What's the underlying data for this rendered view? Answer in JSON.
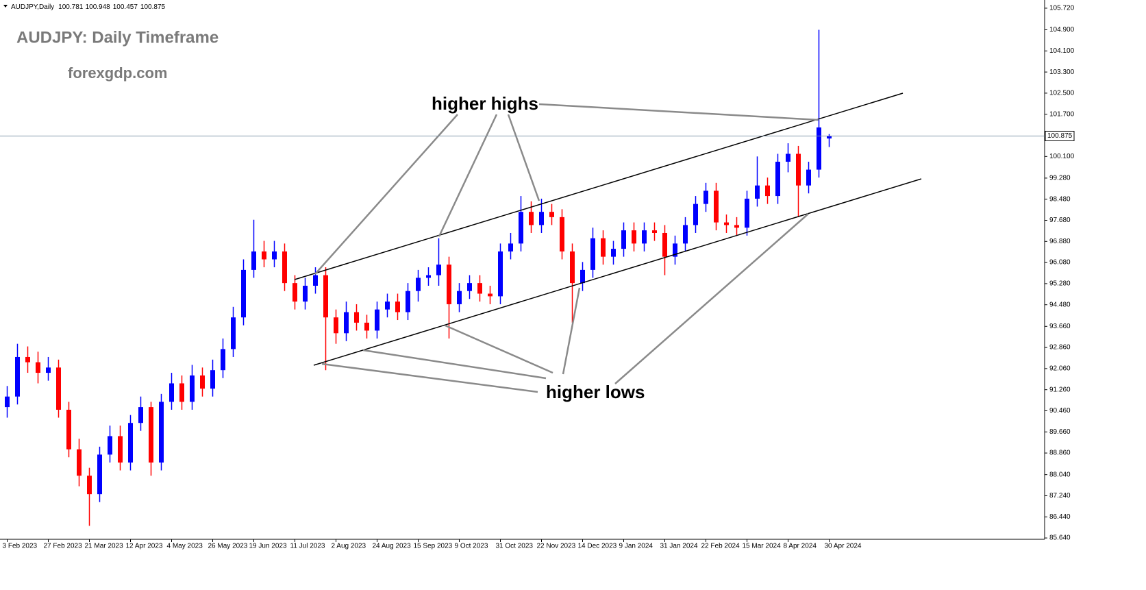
{
  "chart_data": {
    "type": "candlestick",
    "symbol": "AUDJPY,Daily",
    "title": "AUDJPY: Daily Timeframe",
    "subtitle": "forexgdp.com",
    "annotations": [
      "higher highs",
      "higher lows"
    ],
    "up_color": "#0000ff",
    "down_color": "#ff0000",
    "ylim": [
      85.59,
      106.03
    ],
    "yticks": [
      {
        "value": 105.72,
        "label": "105.720"
      },
      {
        "value": 104.9,
        "label": "104.900"
      },
      {
        "value": 104.1,
        "label": "104.100"
      },
      {
        "value": 103.3,
        "label": "103.300"
      },
      {
        "value": 102.5,
        "label": "102.500"
      },
      {
        "value": 101.7,
        "label": "101.700"
      },
      {
        "value": 100.1,
        "label": "100.100"
      },
      {
        "value": 99.28,
        "label": "99.280"
      },
      {
        "value": 98.48,
        "label": "98.480"
      },
      {
        "value": 97.68,
        "label": "97.680"
      },
      {
        "value": 96.88,
        "label": "96.880"
      },
      {
        "value": 96.08,
        "label": "96.080"
      },
      {
        "value": 95.28,
        "label": "95.280"
      },
      {
        "value": 94.48,
        "label": "94.480"
      },
      {
        "value": 93.66,
        "label": "93.660"
      },
      {
        "value": 92.86,
        "label": "92.860"
      },
      {
        "value": 92.06,
        "label": "92.060"
      },
      {
        "value": 91.26,
        "label": "91.260"
      },
      {
        "value": 90.46,
        "label": "90.460"
      },
      {
        "value": 89.66,
        "label": "89.660"
      },
      {
        "value": 88.86,
        "label": "88.860"
      },
      {
        "value": 88.04,
        "label": "88.040"
      },
      {
        "value": 87.24,
        "label": "87.240"
      },
      {
        "value": 86.44,
        "label": "86.440"
      },
      {
        "value": 85.64,
        "label": "85.640"
      }
    ],
    "categories": [
      "3 Feb 2023",
      null,
      null,
      null,
      "27 Feb 2023",
      null,
      null,
      null,
      "21 Mar 2023",
      null,
      null,
      null,
      "12 Apr 2023",
      null,
      null,
      null,
      "4 May 2023",
      null,
      null,
      null,
      "26 May 2023",
      null,
      null,
      null,
      "19 Jun 2023",
      null,
      null,
      null,
      "11 Jul 2023",
      null,
      null,
      null,
      "2 Aug 2023",
      null,
      null,
      null,
      "24 Aug 2023",
      null,
      null,
      null,
      "15 Sep 2023",
      null,
      null,
      null,
      "9 Oct 2023",
      null,
      null,
      null,
      "31 Oct 2023",
      null,
      null,
      null,
      "22 Nov 2023",
      null,
      null,
      null,
      "14 Dec 2023",
      null,
      null,
      null,
      "9 Jan 2024",
      null,
      null,
      null,
      "31 Jan 2024",
      null,
      null,
      null,
      "22 Feb 2024",
      null,
      null,
      null,
      "15 Mar 2024",
      null,
      null,
      null,
      "8 Apr 2024",
      null,
      null,
      null,
      "30 Apr 2024"
    ],
    "open": [
      90.6,
      91.0,
      92.5,
      92.3,
      91.9,
      92.1,
      90.5,
      89.0,
      88.0,
      87.3,
      88.8,
      89.5,
      88.5,
      90.0,
      90.6,
      88.5,
      90.8,
      91.5,
      90.8,
      91.8,
      91.3,
      92.0,
      92.8,
      94.0,
      95.8,
      96.5,
      96.2,
      96.5,
      95.3,
      94.6,
      95.2,
      95.6,
      94.0,
      93.4,
      94.2,
      93.8,
      93.5,
      94.3,
      94.6,
      94.2,
      95.0,
      95.5,
      95.6,
      96.0,
      94.5,
      95.0,
      95.3,
      94.9,
      94.8,
      96.5,
      96.8,
      98.0,
      97.5,
      98.0,
      97.8,
      96.5,
      95.3,
      95.8,
      97.0,
      96.3,
      96.6,
      97.3,
      96.8,
      97.3,
      97.2,
      96.3,
      96.8,
      97.5,
      98.3,
      98.8,
      97.6,
      97.5,
      97.4,
      98.5,
      99.0,
      98.6,
      99.9,
      100.2,
      99.0,
      99.6,
      100.781
    ],
    "high": [
      91.4,
      93.0,
      92.9,
      92.7,
      92.5,
      92.4,
      90.8,
      89.4,
      88.3,
      89.1,
      89.9,
      89.9,
      90.3,
      91.0,
      90.8,
      91.1,
      91.9,
      91.8,
      92.2,
      92.1,
      92.4,
      93.2,
      94.4,
      96.2,
      97.7,
      96.9,
      96.9,
      96.8,
      95.6,
      95.5,
      95.9,
      95.9,
      94.3,
      94.6,
      94.5,
      94.1,
      94.6,
      94.9,
      94.9,
      95.3,
      95.8,
      95.9,
      97.0,
      96.3,
      95.3,
      95.6,
      95.6,
      95.2,
      96.8,
      97.2,
      98.6,
      98.4,
      98.5,
      98.3,
      98.1,
      96.8,
      96.1,
      97.4,
      97.3,
      96.9,
      97.6,
      97.6,
      97.6,
      97.6,
      97.5,
      97.1,
      97.8,
      98.6,
      99.1,
      99.1,
      97.9,
      97.8,
      98.8,
      100.1,
      99.3,
      100.2,
      100.6,
      100.5,
      99.9,
      104.9,
      100.948
    ],
    "low": [
      90.2,
      90.7,
      91.9,
      91.5,
      91.6,
      90.2,
      88.7,
      87.6,
      86.1,
      87.0,
      88.5,
      88.2,
      88.2,
      89.7,
      88.0,
      88.2,
      90.5,
      90.5,
      90.5,
      91.0,
      91.0,
      91.7,
      92.5,
      93.7,
      95.5,
      95.9,
      95.9,
      95.0,
      94.3,
      94.3,
      94.9,
      92.0,
      93.0,
      93.1,
      93.5,
      93.2,
      93.2,
      94.0,
      93.9,
      93.9,
      94.6,
      95.2,
      95.2,
      93.2,
      94.2,
      94.7,
      94.6,
      94.5,
      94.5,
      96.2,
      96.5,
      97.2,
      97.2,
      97.5,
      96.2,
      93.8,
      95.0,
      95.5,
      96.0,
      96.0,
      96.3,
      96.5,
      96.5,
      96.9,
      95.6,
      96.0,
      96.5,
      97.2,
      98.0,
      97.3,
      97.2,
      97.1,
      97.1,
      98.2,
      98.3,
      98.3,
      99.5,
      97.8,
      98.7,
      99.3,
      100.457
    ],
    "close": [
      91.0,
      92.5,
      92.3,
      91.9,
      92.1,
      90.5,
      89.0,
      88.0,
      87.3,
      88.8,
      89.5,
      88.5,
      90.0,
      90.6,
      88.5,
      90.8,
      91.5,
      90.8,
      91.8,
      91.3,
      92.0,
      92.8,
      94.0,
      95.8,
      96.5,
      96.2,
      96.5,
      95.3,
      94.6,
      95.2,
      95.6,
      94.0,
      93.4,
      94.2,
      93.8,
      93.5,
      94.3,
      94.6,
      94.2,
      95.0,
      95.5,
      95.6,
      96.0,
      94.5,
      95.0,
      95.3,
      94.9,
      94.8,
      96.5,
      96.8,
      98.0,
      97.5,
      98.0,
      97.8,
      96.5,
      95.3,
      95.8,
      97.0,
      96.3,
      96.6,
      97.3,
      96.8,
      97.3,
      97.2,
      96.3,
      96.8,
      97.5,
      98.3,
      98.8,
      97.6,
      97.5,
      97.4,
      98.5,
      99.0,
      98.6,
      99.9,
      100.2,
      99.0,
      99.6,
      101.2,
      100.875
    ]
  }
}
